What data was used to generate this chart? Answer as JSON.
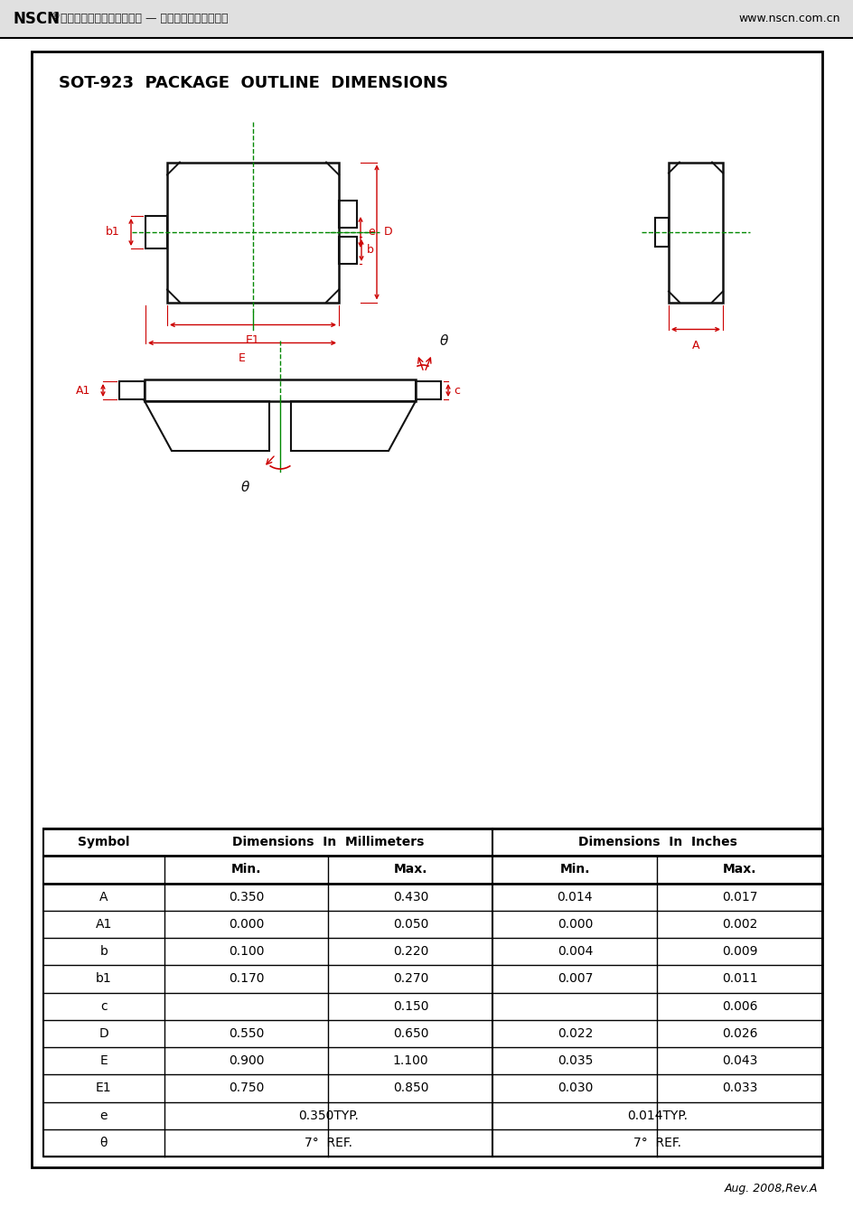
{
  "title": "SOT-923  PACKAGE  OUTLINE  DIMENSIONS",
  "header_left_bold": "NSCN",
  "header_left_reg": "®【南京南山半导体有限公司 — 长电三极管选型资料】",
  "header_right": "www.nscn.com.cn",
  "footer": "Aug. 2008,Rev.A",
  "table_rows": [
    [
      "A",
      "0.350",
      "0.430",
      "0.014",
      "0.017"
    ],
    [
      "A1",
      "0.000",
      "0.050",
      "0.000",
      "0.002"
    ],
    [
      "b",
      "0.100",
      "0.220",
      "0.004",
      "0.009"
    ],
    [
      "b1",
      "0.170",
      "0.270",
      "0.007",
      "0.011"
    ],
    [
      "c",
      "",
      "0.150",
      "",
      "0.006"
    ],
    [
      "D",
      "0.550",
      "0.650",
      "0.022",
      "0.026"
    ],
    [
      "E",
      "0.900",
      "1.100",
      "0.035",
      "0.043"
    ],
    [
      "E1",
      "0.750",
      "0.850",
      "0.030",
      "0.033"
    ],
    [
      "e",
      "0.350TYP.",
      "",
      "0.014TYP.",
      ""
    ],
    [
      "θ",
      "7°  REF.",
      "",
      "7°  REF.",
      ""
    ]
  ],
  "RED": "#cc0000",
  "GREEN": "#008800",
  "BLACK": "#111111",
  "GRAY_BG": "#d8d8d8"
}
